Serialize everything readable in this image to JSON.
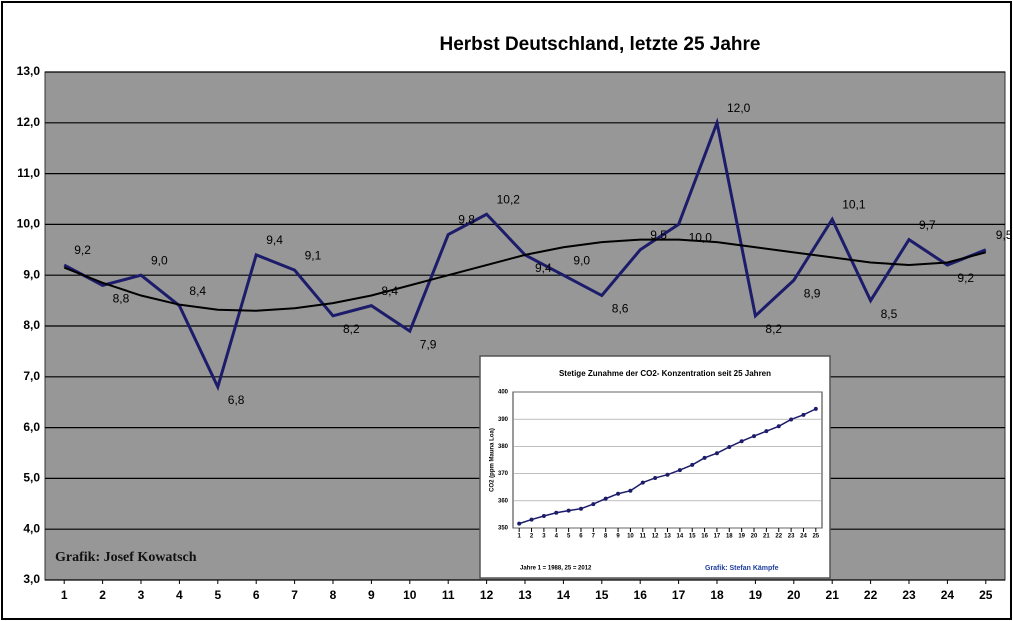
{
  "chart_data": [
    {
      "type": "line",
      "title": "Herbst Deutschland, letzte 25 Jahre",
      "annotation": "Grafik: Josef Kowatsch",
      "x": [
        1,
        2,
        3,
        4,
        5,
        6,
        7,
        8,
        9,
        10,
        11,
        12,
        13,
        14,
        15,
        16,
        17,
        18,
        19,
        20,
        21,
        22,
        23,
        24,
        25
      ],
      "xlim": [
        0.5,
        25.5
      ],
      "xticks": [
        1,
        2,
        3,
        4,
        5,
        6,
        7,
        8,
        9,
        10,
        11,
        12,
        13,
        14,
        15,
        16,
        17,
        18,
        19,
        20,
        21,
        22,
        23,
        24,
        25
      ],
      "ylim": [
        3,
        13
      ],
      "yticks": [
        {
          "value": 3,
          "label": "3,0"
        },
        {
          "value": 4,
          "label": "4,0"
        },
        {
          "value": 5,
          "label": "5,0"
        },
        {
          "value": 6,
          "label": "6,0"
        },
        {
          "value": 7,
          "label": "7,0"
        },
        {
          "value": 8,
          "label": "8,0"
        },
        {
          "value": 9,
          "label": "9,0"
        },
        {
          "value": 10,
          "label": "10,0"
        },
        {
          "value": 11,
          "label": "11,0"
        },
        {
          "value": 12,
          "label": "12,0"
        },
        {
          "value": 13,
          "label": "13,0"
        }
      ],
      "grid": true,
      "background": "#979797",
      "series": [
        {
          "color": "#1c1c6b",
          "values": [
            9.2,
            8.8,
            9.0,
            8.4,
            6.8,
            9.4,
            9.1,
            8.2,
            8.4,
            7.9,
            9.8,
            10.2,
            9.4,
            9.0,
            8.6,
            9.5,
            10.0,
            12.0,
            8.2,
            8.9,
            10.1,
            8.5,
            9.7,
            9.2,
            9.5
          ],
          "value_labels": [
            "9,2",
            "8,8",
            "9,0",
            "8,4",
            "6,8",
            "9,4",
            "9,1",
            "8,2",
            "8,4",
            "7,9",
            "9,8",
            "10,2",
            "9,4",
            "9,0",
            "8,6",
            "9,5",
            "10,0",
            "12,0",
            "8,2",
            "8,9",
            "10,1",
            "8,5",
            "9,7",
            "9,2",
            "9,5"
          ]
        },
        {
          "color": "#000000",
          "values": [
            9.15,
            8.85,
            8.6,
            8.42,
            8.32,
            8.3,
            8.35,
            8.45,
            8.6,
            8.8,
            9.0,
            9.2,
            9.4,
            9.55,
            9.65,
            9.7,
            9.7,
            9.65,
            9.55,
            9.45,
            9.35,
            9.25,
            9.2,
            9.25,
            9.45
          ]
        }
      ]
    },
    {
      "type": "line",
      "title": "Stetige Zunahme der CO2- Konzentration seit 25 Jahren",
      "ylabel": "CO2 (ppm Mauna Loa)",
      "annotation": "Jahre 1 = 1988, 25 = 2012",
      "annotation2": "Grafik: Stefan Kämpfe",
      "x": [
        1,
        2,
        3,
        4,
        5,
        6,
        7,
        8,
        9,
        10,
        11,
        12,
        13,
        14,
        15,
        16,
        17,
        18,
        19,
        20,
        21,
        22,
        23,
        24,
        25
      ],
      "xlim": [
        0.5,
        25.5
      ],
      "xticks": [
        1,
        2,
        3,
        4,
        5,
        6,
        7,
        8,
        9,
        10,
        11,
        12,
        13,
        14,
        15,
        16,
        17,
        18,
        19,
        20,
        21,
        22,
        23,
        24,
        25
      ],
      "ylim": [
        350,
        400
      ],
      "yticks": [
        350,
        360,
        370,
        380,
        390,
        400
      ],
      "grid": true,
      "background": "#ffffff",
      "series": [
        {
          "color": "#1c1c6b",
          "values": [
            351.6,
            353.1,
            354.4,
            355.6,
            356.4,
            357.1,
            358.8,
            360.8,
            362.6,
            363.7,
            366.7,
            368.4,
            369.6,
            371.3,
            373.2,
            375.8,
            377.5,
            379.8,
            381.9,
            383.8,
            385.6,
            387.4,
            389.9,
            391.6,
            393.8
          ]
        }
      ]
    }
  ]
}
